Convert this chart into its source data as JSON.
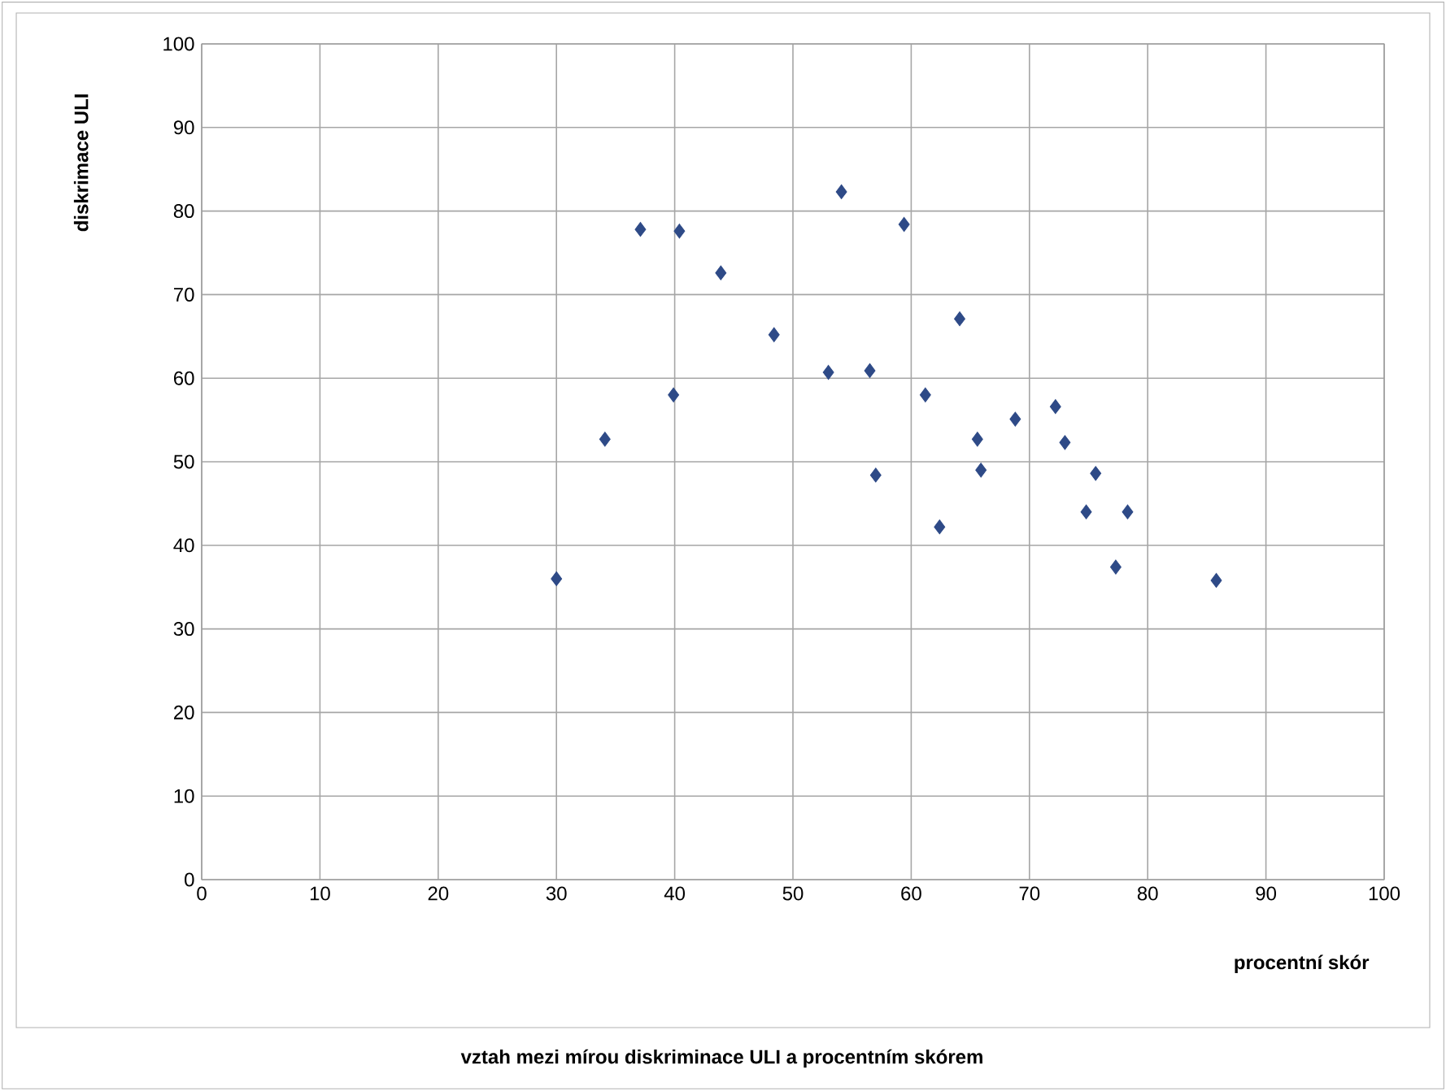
{
  "chart_data": {
    "type": "scatter",
    "title": "vztah mezi mírou diskriminace ULI a procentním skórem",
    "xlabel": "procentní skór",
    "ylabel": "diskrimace ULI",
    "x": [
      30,
      34.1,
      37.1,
      40.4,
      39.9,
      43.9,
      48.4,
      53,
      54.1,
      56.5,
      57,
      59.4,
      61.2,
      62.4,
      64.1,
      65.6,
      65.9,
      68.8,
      72.2,
      73,
      75.6,
      74.8,
      77.3,
      78.3,
      85.8
    ],
    "values": [
      36,
      52.7,
      77.8,
      77.6,
      58,
      72.6,
      65.2,
      60.7,
      82.3,
      60.9,
      48.4,
      78.4,
      58,
      42.2,
      67.1,
      52.7,
      49,
      55.1,
      56.6,
      52.3,
      48.6,
      44,
      37.4,
      44,
      35.8
    ],
    "color": "#2e4a87",
    "marker": "diamond",
    "grid": true,
    "xlim": [
      0,
      100
    ],
    "ylim": [
      0,
      100
    ],
    "xticks": [
      0,
      10,
      20,
      30,
      40,
      50,
      60,
      70,
      80,
      90,
      100
    ],
    "yticks": [
      0,
      10,
      20,
      30,
      40,
      50,
      60,
      70,
      80,
      90,
      100
    ]
  }
}
